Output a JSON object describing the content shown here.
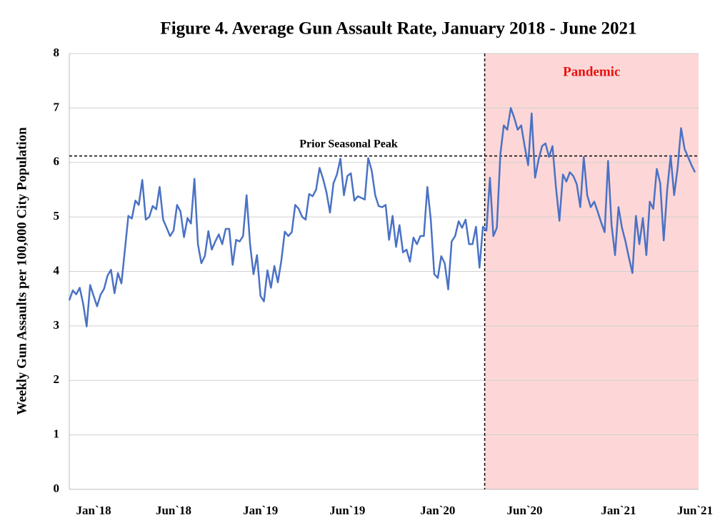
{
  "chart_data": {
    "type": "line",
    "title": "Figure 4. Average Gun Assault Rate, January 2018 - June 2021",
    "y_label": "Weekly Gun Assaults per 100,000 City Population",
    "categories": [
      null,
      null,
      null,
      null,
      null,
      null,
      null,
      "Jan`18",
      null,
      null,
      null,
      null,
      null,
      null,
      null,
      null,
      null,
      null,
      null,
      null,
      null,
      null,
      null,
      null,
      null,
      null,
      null,
      null,
      null,
      null,
      "Jun`18",
      null,
      null,
      null,
      null,
      null,
      null,
      null,
      null,
      null,
      null,
      null,
      null,
      null,
      null,
      null,
      null,
      null,
      null,
      null,
      null,
      null,
      null,
      null,
      null,
      "Jan`19",
      null,
      null,
      null,
      null,
      null,
      null,
      null,
      null,
      null,
      null,
      null,
      null,
      null,
      null,
      null,
      null,
      null,
      null,
      null,
      null,
      null,
      null,
      null,
      null,
      "Jun`19",
      null,
      null,
      null,
      null,
      null,
      null,
      null,
      null,
      null,
      null,
      null,
      null,
      null,
      null,
      null,
      null,
      null,
      null,
      null,
      null,
      null,
      null,
      null,
      null,
      null,
      "Jan`20",
      null,
      null,
      null,
      null,
      null,
      null,
      null,
      null,
      null,
      null,
      null,
      null,
      null,
      null,
      null,
      null,
      null,
      null,
      null,
      null,
      null,
      null,
      null,
      null,
      "Jun`20",
      null,
      null,
      null,
      null,
      null,
      null,
      null,
      null,
      null,
      null,
      null,
      null,
      null,
      null,
      null,
      null,
      null,
      null,
      null,
      null,
      null,
      null,
      null,
      null,
      null,
      null,
      "Jan`21",
      null,
      null,
      null,
      null,
      null,
      null,
      null,
      null,
      null,
      null,
      null,
      null,
      null,
      null,
      null,
      null,
      null,
      null,
      null,
      null,
      null,
      "Jun`21"
    ],
    "series": [
      {
        "name": "Weekly Gun Assaults",
        "color": "#4a72c4",
        "values": [
          3.47,
          3.65,
          3.58,
          3.7,
          3.4,
          2.99,
          3.75,
          3.55,
          3.36,
          3.57,
          3.68,
          3.92,
          4.03,
          3.6,
          3.97,
          3.78,
          4.4,
          5.02,
          4.97,
          5.3,
          5.22,
          5.68,
          4.95,
          5.0,
          5.2,
          5.14,
          5.55,
          4.95,
          4.8,
          4.65,
          4.75,
          5.22,
          5.1,
          4.63,
          4.98,
          4.88,
          5.7,
          4.5,
          4.15,
          4.28,
          4.74,
          4.4,
          4.55,
          4.68,
          4.5,
          4.78,
          4.78,
          4.12,
          4.58,
          4.55,
          4.65,
          5.4,
          4.5,
          3.95,
          4.3,
          3.55,
          3.45,
          4.02,
          3.7,
          4.1,
          3.8,
          4.2,
          4.73,
          4.65,
          4.72,
          5.22,
          5.15,
          5.0,
          4.95,
          5.42,
          5.38,
          5.5,
          5.9,
          5.7,
          5.45,
          5.08,
          5.62,
          5.78,
          6.07,
          5.4,
          5.75,
          5.8,
          5.3,
          5.38,
          5.35,
          5.32,
          6.08,
          5.85,
          5.4,
          5.2,
          5.18,
          5.22,
          4.58,
          5.02,
          4.45,
          4.85,
          4.35,
          4.4,
          4.18,
          4.62,
          4.5,
          4.65,
          4.65,
          5.55,
          4.95,
          3.95,
          3.88,
          4.28,
          4.15,
          3.67,
          4.55,
          4.65,
          4.92,
          4.8,
          4.95,
          4.5,
          4.5,
          4.82,
          4.07,
          4.82,
          4.75,
          5.72,
          4.65,
          4.8,
          6.15,
          6.68,
          6.6,
          7.0,
          6.82,
          6.6,
          6.68,
          6.3,
          5.95,
          6.9,
          5.72,
          6.05,
          6.3,
          6.35,
          6.1,
          6.3,
          5.55,
          4.93,
          5.78,
          5.65,
          5.82,
          5.75,
          5.6,
          5.18,
          6.1,
          5.4,
          5.18,
          5.28,
          5.1,
          4.9,
          4.72,
          6.03,
          4.85,
          4.3,
          5.18,
          4.8,
          4.55,
          4.25,
          3.97,
          5.02,
          4.5,
          4.98,
          4.3,
          5.28,
          5.15,
          5.88,
          5.62,
          4.57,
          5.5,
          6.12,
          5.4,
          5.9,
          6.63,
          6.25,
          6.1,
          5.95,
          5.82
        ]
      }
    ],
    "ylim": [
      0,
      8
    ],
    "yticks": [
      0,
      1,
      2,
      3,
      4,
      5,
      6,
      7,
      8
    ],
    "grid": true,
    "reference_line": {
      "value": 6.12,
      "label": "Prior Seasonal Peak"
    },
    "shaded_region": {
      "label": "Pandemic",
      "color": "#fdd7d7",
      "label_color": "#e8100f"
    }
  }
}
